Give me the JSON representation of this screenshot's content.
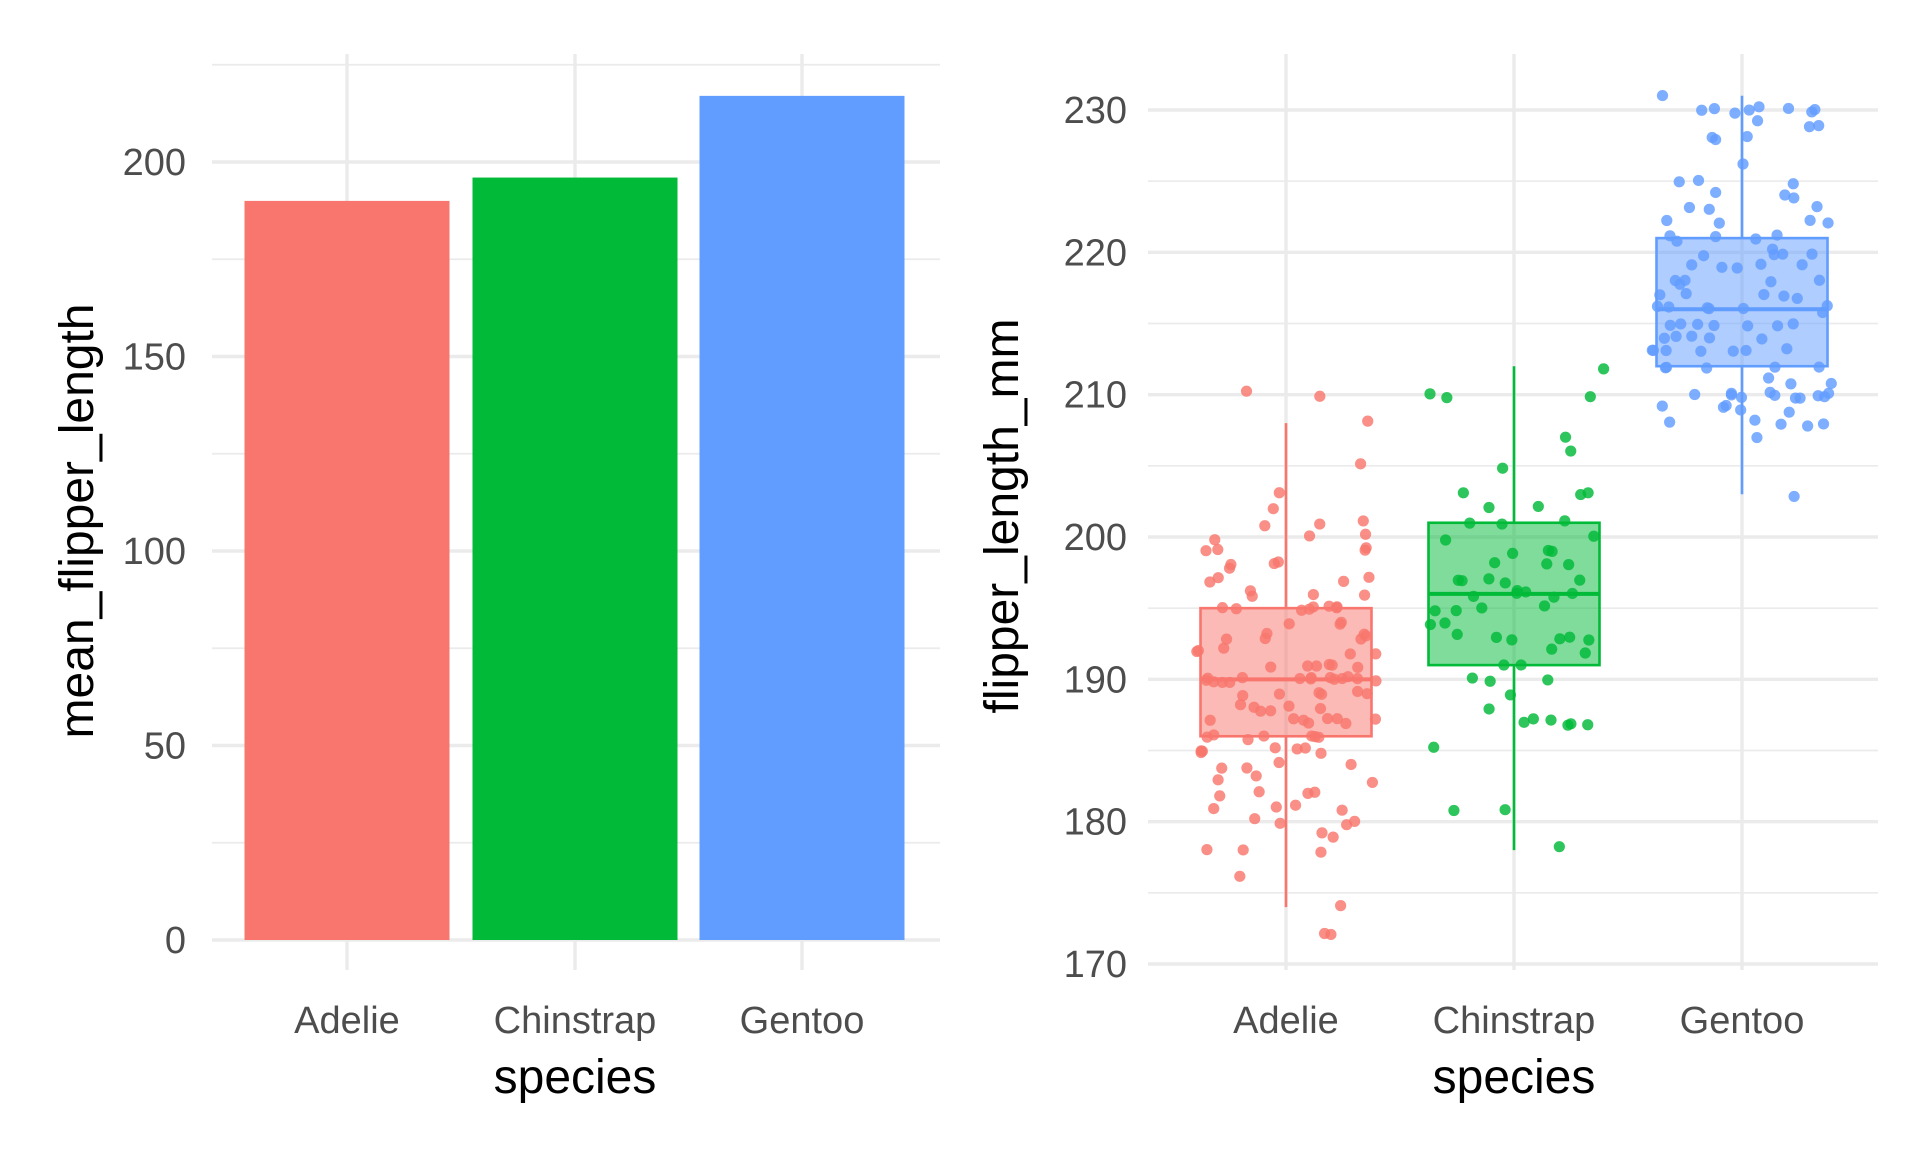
{
  "chart_data": [
    {
      "type": "bar",
      "categories": [
        "Adelie",
        "Chinstrap",
        "Gentoo"
      ],
      "values": [
        190,
        196,
        217
      ],
      "colors": [
        "#F8766D",
        "#00BA38",
        "#619CFF"
      ],
      "xlabel": "species",
      "ylabel": "mean_flipper_length",
      "ylim": [
        0,
        225
      ],
      "yticks": [
        0,
        50,
        100,
        150,
        200
      ],
      "grid": true,
      "legend": "none"
    },
    {
      "type": "box",
      "categories": [
        "Adelie",
        "Chinstrap",
        "Gentoo"
      ],
      "colors": [
        "#F8766D",
        "#00BA38",
        "#619CFF"
      ],
      "xlabel": "species",
      "ylabel": "flipper_length_mm",
      "ylim": [
        170,
        231
      ],
      "yticks": [
        170,
        180,
        190,
        200,
        210,
        220,
        230
      ],
      "grid": true,
      "legend": "none",
      "boxes": [
        {
          "name": "Adelie",
          "whisker_low": 174,
          "q1": 186,
          "median": 190,
          "q3": 195,
          "whisker_high": 208
        },
        {
          "name": "Chinstrap",
          "whisker_low": 178,
          "q1": 191,
          "median": 196,
          "q3": 201,
          "whisker_high": 212
        },
        {
          "name": "Gentoo",
          "whisker_low": 203,
          "q1": 212,
          "median": 216,
          "q3": 221,
          "whisker_high": 231
        }
      ],
      "points": [
        {
          "species": "Adelie",
          "values": [
            172,
            172,
            174,
            176,
            178,
            178,
            178,
            179,
            179,
            180,
            180,
            180,
            180,
            181,
            181,
            181,
            181,
            182,
            182,
            182,
            182,
            183,
            183,
            183,
            184,
            184,
            184,
            184,
            185,
            185,
            185,
            185,
            185,
            185,
            185,
            186,
            186,
            186,
            186,
            186,
            186,
            186,
            187,
            187,
            187,
            187,
            187,
            187,
            187,
            187,
            188,
            188,
            188,
            188,
            188,
            188,
            189,
            189,
            189,
            189,
            189,
            189,
            190,
            190,
            190,
            190,
            190,
            190,
            190,
            190,
            190,
            190,
            190,
            190,
            190,
            190,
            190,
            191,
            191,
            191,
            191,
            191,
            191,
            192,
            192,
            192,
            192,
            192,
            193,
            193,
            193,
            193,
            193,
            193,
            194,
            194,
            194,
            195,
            195,
            195,
            195,
            195,
            195,
            195,
            195,
            196,
            196,
            196,
            196,
            197,
            197,
            197,
            197,
            198,
            198,
            198,
            198,
            199,
            199,
            199,
            199,
            200,
            200,
            200,
            201,
            201,
            201,
            202,
            203,
            205,
            208,
            210,
            210
          ]
        },
        {
          "species": "Chinstrap",
          "values": [
            178,
            181,
            181,
            185,
            187,
            187,
            187,
            187,
            187,
            187,
            188,
            189,
            190,
            190,
            190,
            191,
            191,
            192,
            192,
            193,
            193,
            193,
            193,
            193,
            193,
            194,
            194,
            195,
            195,
            195,
            195,
            196,
            196,
            196,
            196,
            196,
            196,
            197,
            197,
            197,
            197,
            197,
            198,
            198,
            198,
            199,
            199,
            199,
            200,
            200,
            201,
            201,
            201,
            202,
            202,
            203,
            203,
            203,
            205,
            206,
            207,
            210,
            210,
            210,
            212
          ]
        },
        {
          "species": "Gentoo",
          "values": [
            203,
            207,
            208,
            208,
            208,
            208,
            208,
            209,
            209,
            209,
            209,
            209,
            210,
            210,
            210,
            210,
            210,
            210,
            210,
            210,
            210,
            210,
            210,
            211,
            211,
            211,
            212,
            212,
            212,
            212,
            212,
            213,
            213,
            213,
            213,
            213,
            213,
            213,
            214,
            214,
            214,
            214,
            214,
            215,
            215,
            215,
            215,
            215,
            215,
            215,
            216,
            216,
            216,
            216,
            216,
            216,
            216,
            217,
            217,
            217,
            217,
            217,
            218,
            218,
            218,
            218,
            218,
            219,
            219,
            219,
            219,
            219,
            220,
            220,
            220,
            220,
            220,
            221,
            221,
            221,
            221,
            221,
            222,
            222,
            222,
            222,
            223,
            223,
            223,
            224,
            224,
            224,
            225,
            225,
            225,
            226,
            228,
            228,
            228,
            229,
            229,
            229,
            230,
            230,
            230,
            230,
            230,
            230,
            230,
            230,
            231
          ]
        }
      ]
    }
  ]
}
